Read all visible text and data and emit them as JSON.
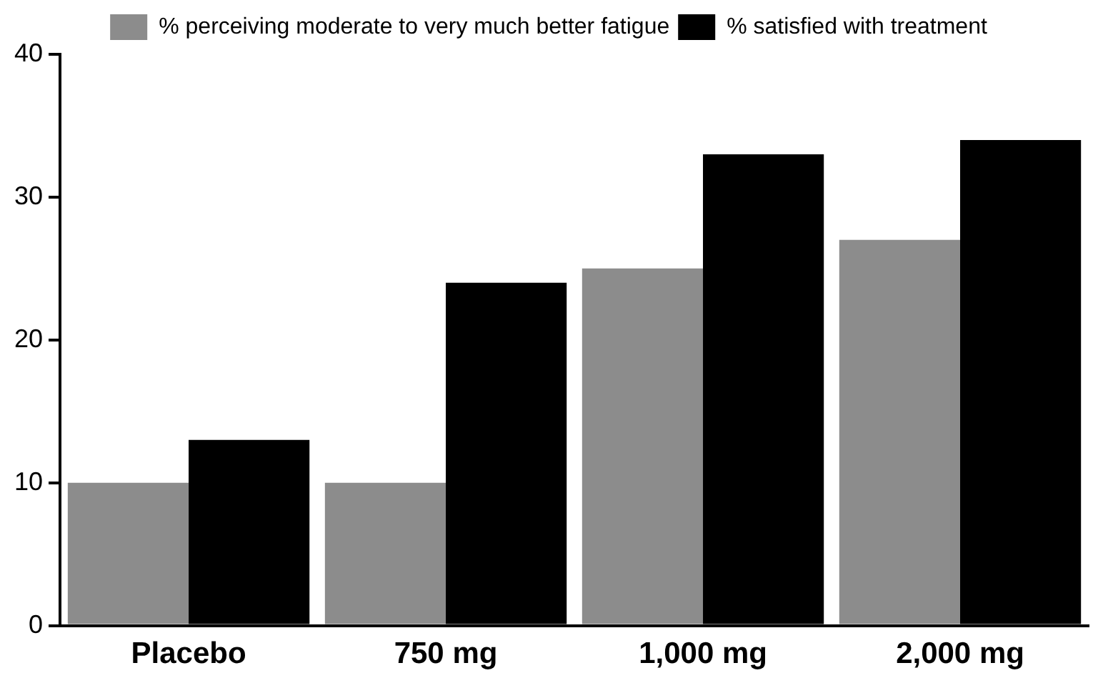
{
  "chart_data": {
    "type": "bar",
    "categories": [
      "Placebo",
      "750 mg",
      "1,000 mg",
      "2,000 mg"
    ],
    "series": [
      {
        "name": "% perceiving moderate to very much better fatigue",
        "color": "#8c8c8c",
        "values": [
          10,
          10,
          25,
          27
        ]
      },
      {
        "name": "% satisfied with treatment",
        "color": "#000000",
        "values": [
          13,
          24,
          33,
          34
        ]
      }
    ],
    "ylim": [
      0,
      40
    ],
    "yticks": [
      0,
      10,
      20,
      30,
      40
    ],
    "grid": false,
    "legend": "top"
  }
}
